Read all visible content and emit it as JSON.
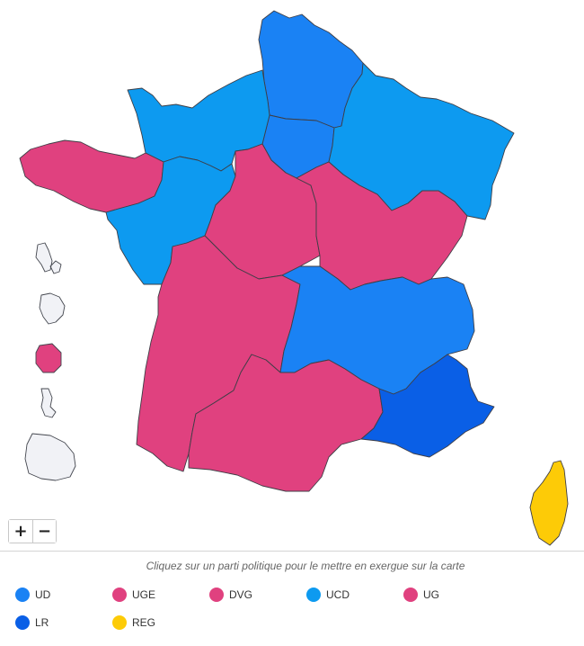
{
  "map": {
    "colors": {
      "UD": "#1a82f4",
      "UGE": "#e0417f",
      "DVG": "#e0417f",
      "UCD": "#0d9af0",
      "UG": "#e0417f",
      "LR": "#0a5fe6",
      "REG": "#fdcb07",
      "none": "#f1f2f6"
    },
    "regions": [
      {
        "id": "hauts-de-france",
        "party": "UD"
      },
      {
        "id": "ile-de-france",
        "party": "UD"
      },
      {
        "id": "normandie",
        "party": "UCD"
      },
      {
        "id": "grand-est",
        "party": "UCD"
      },
      {
        "id": "pays-de-la-loire",
        "party": "UCD"
      },
      {
        "id": "bretagne",
        "party": "UGE"
      },
      {
        "id": "centre-val-de-loire",
        "party": "UG"
      },
      {
        "id": "bourgogne-franche-comte",
        "party": "UG"
      },
      {
        "id": "nouvelle-aquitaine",
        "party": "UG"
      },
      {
        "id": "occitanie",
        "party": "UG"
      },
      {
        "id": "auvergne-rhone-alpes",
        "party": "UD"
      },
      {
        "id": "provence-alpes-cote-d-azur",
        "party": "LR"
      },
      {
        "id": "corse",
        "party": "REG"
      },
      {
        "id": "guadeloupe",
        "party": "none"
      },
      {
        "id": "martinique",
        "party": "none"
      },
      {
        "id": "la-reunion",
        "party": "DVG"
      },
      {
        "id": "mayotte",
        "party": "none"
      },
      {
        "id": "guyane",
        "party": "none"
      }
    ]
  },
  "zoom": {
    "in_label": "+",
    "out_label": "−"
  },
  "legend": {
    "hint": "Cliquez sur un parti politique pour le mettre en exergue sur la carte",
    "items": [
      {
        "label": "UD",
        "color": "#1a82f4"
      },
      {
        "label": "UGE",
        "color": "#e0417f"
      },
      {
        "label": "DVG",
        "color": "#e0417f"
      },
      {
        "label": "UCD",
        "color": "#0d9af0"
      },
      {
        "label": "UG",
        "color": "#e0417f"
      },
      {
        "label": "LR",
        "color": "#0a5fe6"
      },
      {
        "label": "REG",
        "color": "#fdcb07"
      }
    ]
  }
}
